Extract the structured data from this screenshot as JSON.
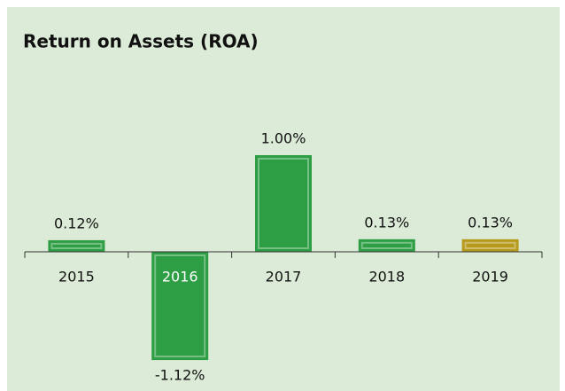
{
  "chart_data": {
    "type": "bar",
    "title": "Return on Assets (ROA)",
    "categories": [
      "2015",
      "2016",
      "2017",
      "2018",
      "2019"
    ],
    "values": [
      0.12,
      -1.12,
      1.0,
      0.13,
      0.13
    ],
    "value_labels": [
      "0.12%",
      "-1.12%",
      "1.00%",
      "0.13%",
      "0.13%"
    ],
    "colors": [
      "#2e9e44",
      "#2e9e44",
      "#2e9e44",
      "#2e9e44",
      "#b59a1c"
    ]
  }
}
